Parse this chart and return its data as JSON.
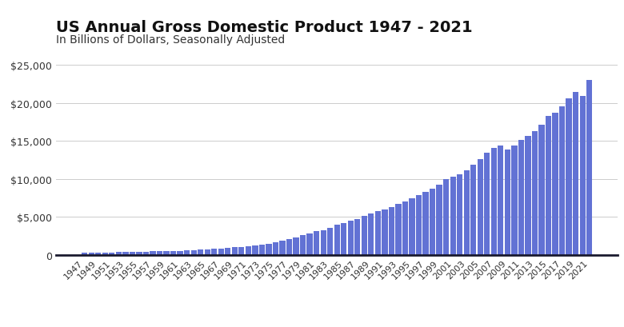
{
  "title": "US Annual Gross Domestic Product 1947 - 2021",
  "subtitle": "In Billions of Dollars, Seasonally Adjusted",
  "bar_color": "#6272d4",
  "background_color": "#ffffff",
  "ylim": [
    0,
    25000
  ],
  "yticks": [
    0,
    5000,
    10000,
    15000,
    20000,
    25000
  ],
  "ytick_labels": [
    "0",
    "$5,000",
    "$10,000",
    "$15,000",
    "$20,000",
    "$25,000"
  ],
  "years": [
    1947,
    1948,
    1949,
    1950,
    1951,
    1952,
    1953,
    1954,
    1955,
    1956,
    1957,
    1958,
    1959,
    1960,
    1961,
    1962,
    1963,
    1964,
    1965,
    1966,
    1967,
    1968,
    1969,
    1970,
    1971,
    1972,
    1973,
    1974,
    1975,
    1976,
    1977,
    1978,
    1979,
    1980,
    1981,
    1982,
    1983,
    1984,
    1985,
    1986,
    1987,
    1988,
    1989,
    1990,
    1991,
    1992,
    1993,
    1994,
    1995,
    1996,
    1997,
    1998,
    1999,
    2000,
    2001,
    2002,
    2003,
    2004,
    2005,
    2006,
    2007,
    2008,
    2009,
    2010,
    2011,
    2012,
    2013,
    2014,
    2015,
    2016,
    2017,
    2018,
    2019,
    2020,
    2021
  ],
  "values": [
    244.2,
    269.2,
    267.3,
    293.8,
    339.3,
    358.3,
    379.3,
    380.4,
    414.8,
    437.5,
    461.1,
    467.2,
    506.6,
    526.4,
    544.7,
    585.6,
    617.7,
    663.6,
    719.1,
    787.8,
    832.6,
    910.0,
    984.6,
    1038.5,
    1127.1,
    1238.3,
    1382.7,
    1500.0,
    1638.3,
    1825.3,
    2030.9,
    2294.7,
    2563.3,
    2789.5,
    3128.4,
    3255.0,
    3536.7,
    3933.2,
    4220.3,
    4462.8,
    4739.5,
    5103.8,
    5484.4,
    5803.1,
    5995.9,
    6337.7,
    6657.4,
    7072.2,
    7397.7,
    7816.9,
    8304.3,
    8747.0,
    9268.4,
    9951.5,
    10286.2,
    10642.3,
    11142.2,
    11867.8,
    12638.4,
    13398.9,
    14061.8,
    14369.1,
    13898.3,
    14418.7,
    15075.7,
    15684.8,
    16249.1,
    17101.6,
    18219.3,
    18715.0,
    19519.4,
    20580.2,
    21433.2,
    20893.7,
    22996.1
  ],
  "title_fontsize": 14,
  "subtitle_fontsize": 10,
  "tick_fontsize": 8,
  "ytick_fontsize": 9
}
